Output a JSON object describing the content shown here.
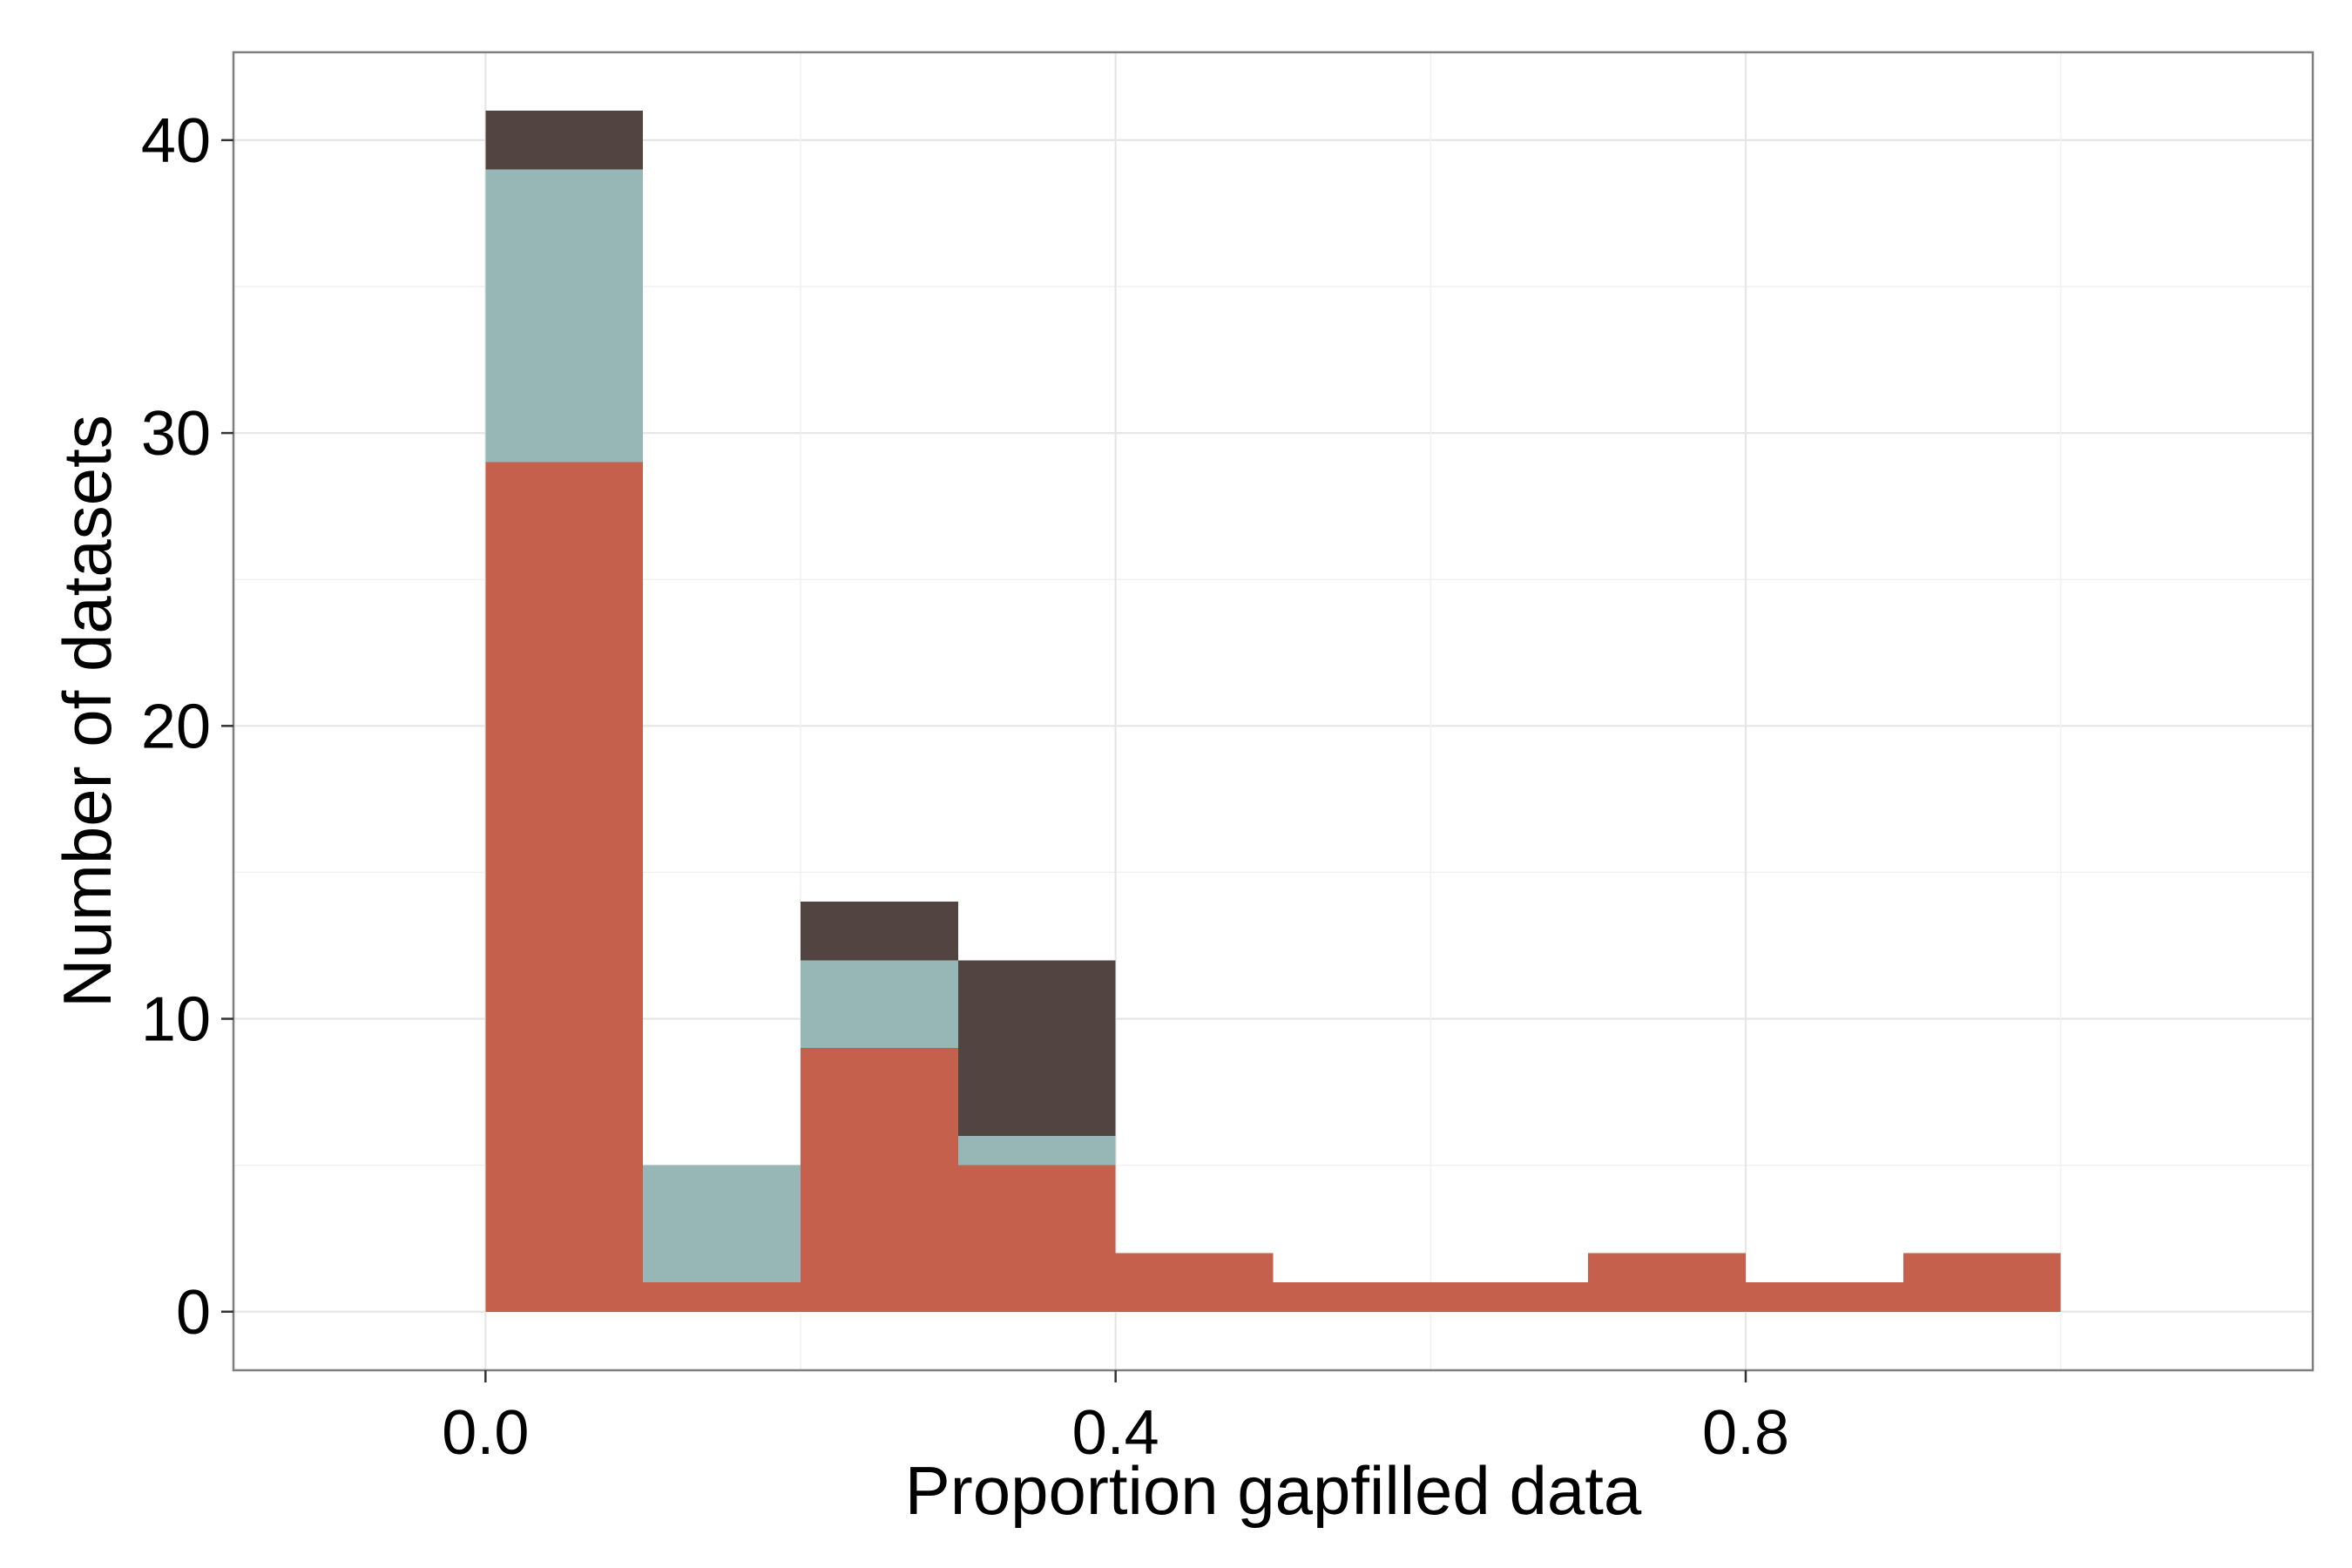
{
  "chart_data": {
    "type": "bar",
    "stacked": true,
    "histogram": true,
    "xlabel": "Proportion gapfilled data",
    "ylabel": "Number of datasets",
    "xlim": [
      -0.16,
      1.16
    ],
    "ylim": [
      -2,
      43
    ],
    "x_ticks": [
      0.0,
      0.4,
      0.8
    ],
    "x_tick_labels": [
      "0.0",
      "0.4",
      "0.8"
    ],
    "y_ticks": [
      0,
      10,
      20,
      30,
      40
    ],
    "y_tick_labels": [
      "0",
      "10",
      "20",
      "30",
      "40"
    ],
    "grid": true,
    "legend": "none",
    "bins": [
      [
        0.0,
        0.1
      ],
      [
        0.1,
        0.2
      ],
      [
        0.2,
        0.3
      ],
      [
        0.3,
        0.4
      ],
      [
        0.4,
        0.5
      ],
      [
        0.5,
        0.6
      ],
      [
        0.6,
        0.7
      ],
      [
        0.7,
        0.8
      ],
      [
        0.8,
        0.9
      ],
      [
        0.9,
        1.0
      ]
    ],
    "series": [
      {
        "color": "#C4604C",
        "values": [
          29,
          1,
          9,
          5,
          2,
          1,
          1,
          2,
          1,
          2
        ]
      },
      {
        "color": "#96B7B5",
        "values": [
          10,
          4,
          3,
          1,
          0,
          0,
          0,
          0,
          0,
          0
        ]
      },
      {
        "color": "#524541",
        "values": [
          2,
          0,
          2,
          6,
          0,
          0,
          0,
          0,
          0,
          0
        ]
      }
    ]
  }
}
